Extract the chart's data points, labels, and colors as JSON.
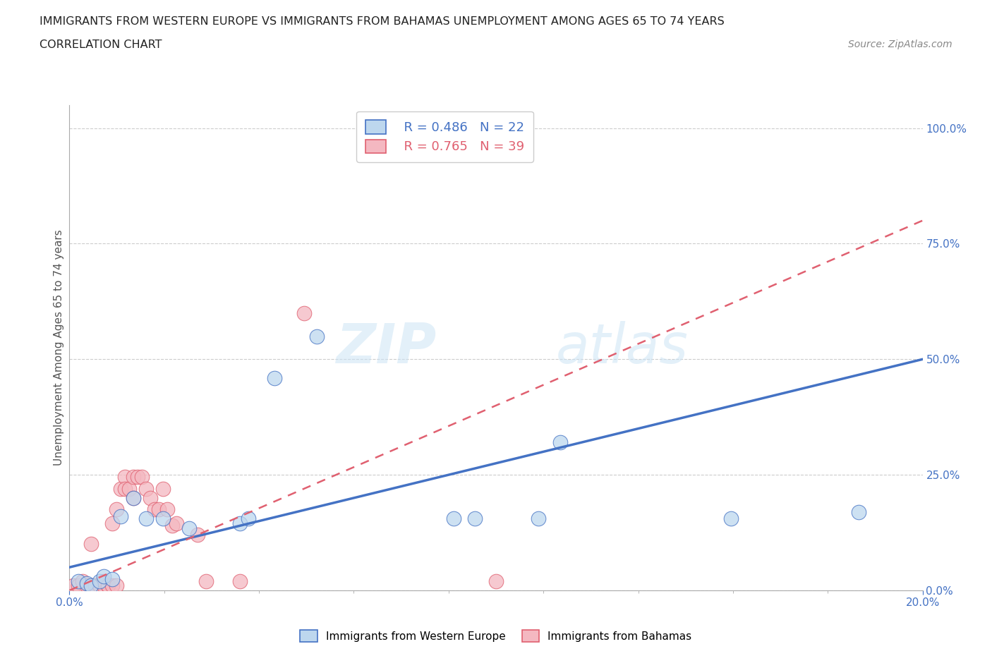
{
  "title_line1": "IMMIGRANTS FROM WESTERN EUROPE VS IMMIGRANTS FROM BAHAMAS UNEMPLOYMENT AMONG AGES 65 TO 74 YEARS",
  "title_line2": "CORRELATION CHART",
  "source": "Source: ZipAtlas.com",
  "ylabel": "Unemployment Among Ages 65 to 74 years",
  "xlim": [
    0.0,
    0.2
  ],
  "ylim": [
    0.0,
    1.05
  ],
  "ytick_labels": [
    "0.0%",
    "25.0%",
    "50.0%",
    "75.0%",
    "100.0%"
  ],
  "ytick_values": [
    0.0,
    0.25,
    0.5,
    0.75,
    1.0
  ],
  "legend_blue_r": "R = 0.486",
  "legend_blue_n": "N = 22",
  "legend_pink_r": "R = 0.765",
  "legend_pink_n": "N = 39",
  "blue_color": "#4472C4",
  "pink_color": "#E06070",
  "blue_fill": "#BDD7EE",
  "pink_fill": "#F4B8C1",
  "watermark_zip": "ZIP",
  "watermark_atlas": "atlas",
  "blue_line_x0": 0.0,
  "blue_line_y0": 0.05,
  "blue_line_x1": 0.2,
  "blue_line_y1": 0.5,
  "pink_line_x0": 0.0,
  "pink_line_y0": 0.0,
  "pink_line_x1": 0.2,
  "pink_line_y1": 0.8,
  "blue_scatter_x": [
    0.002,
    0.004,
    0.005,
    0.007,
    0.008,
    0.01,
    0.012,
    0.015,
    0.018,
    0.022,
    0.028,
    0.04,
    0.042,
    0.048,
    0.058,
    0.075,
    0.09,
    0.095,
    0.11,
    0.115,
    0.155,
    0.185
  ],
  "blue_scatter_y": [
    0.02,
    0.015,
    0.01,
    0.02,
    0.03,
    0.025,
    0.16,
    0.2,
    0.155,
    0.155,
    0.135,
    0.145,
    0.155,
    0.46,
    0.55,
    1.0,
    0.155,
    0.155,
    0.155,
    0.32,
    0.155,
    0.17
  ],
  "pink_scatter_x": [
    0.001,
    0.002,
    0.003,
    0.004,
    0.005,
    0.005,
    0.006,
    0.006,
    0.007,
    0.007,
    0.008,
    0.008,
    0.009,
    0.009,
    0.01,
    0.01,
    0.011,
    0.011,
    0.012,
    0.013,
    0.013,
    0.014,
    0.015,
    0.015,
    0.016,
    0.017,
    0.018,
    0.019,
    0.02,
    0.021,
    0.022,
    0.023,
    0.024,
    0.025,
    0.03,
    0.032,
    0.04,
    0.055,
    0.1
  ],
  "pink_scatter_y": [
    0.01,
    0.01,
    0.02,
    0.01,
    0.1,
    0.01,
    0.01,
    0.01,
    0.01,
    0.01,
    0.01,
    0.02,
    0.01,
    0.01,
    0.145,
    0.01,
    0.175,
    0.01,
    0.22,
    0.245,
    0.22,
    0.22,
    0.245,
    0.2,
    0.245,
    0.245,
    0.22,
    0.2,
    0.175,
    0.175,
    0.22,
    0.175,
    0.14,
    0.145,
    0.12,
    0.02,
    0.02,
    0.6,
    0.02
  ]
}
